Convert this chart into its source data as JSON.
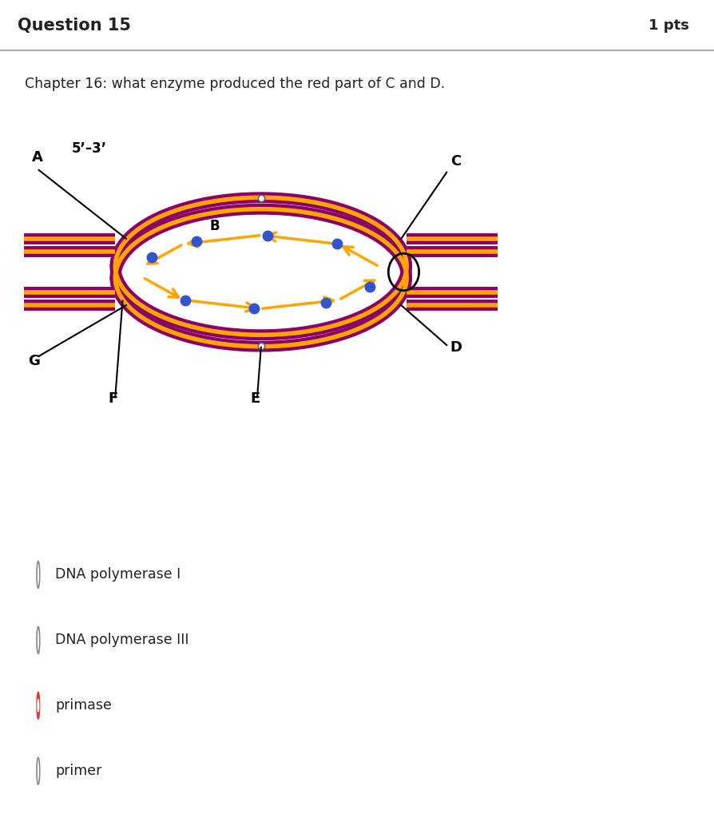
{
  "title": "Question 15",
  "pts": "1 pts",
  "question_text": "Chapter 16: what enzyme produced the red part of C and D.",
  "header_bg": "#e8e8e8",
  "body_bg": "#ffffff",
  "diagram_bg": "#b8e4f0",
  "purple_color": "#8B0066",
  "orange_color": "#FFA500",
  "blue_dot_color": "#3355CC",
  "options": [
    {
      "text": "DNA polymerase I",
      "selected": false
    },
    {
      "text": "DNA polymerase III",
      "selected": false
    },
    {
      "text": "primase",
      "selected": true
    },
    {
      "text": "primer",
      "selected": false
    }
  ],
  "option_selected_color": "#ee3333",
  "divider_color": "#cccccc",
  "text_color": "#222222",
  "label_color": "#000000",
  "header_border": "#aaaaaa"
}
